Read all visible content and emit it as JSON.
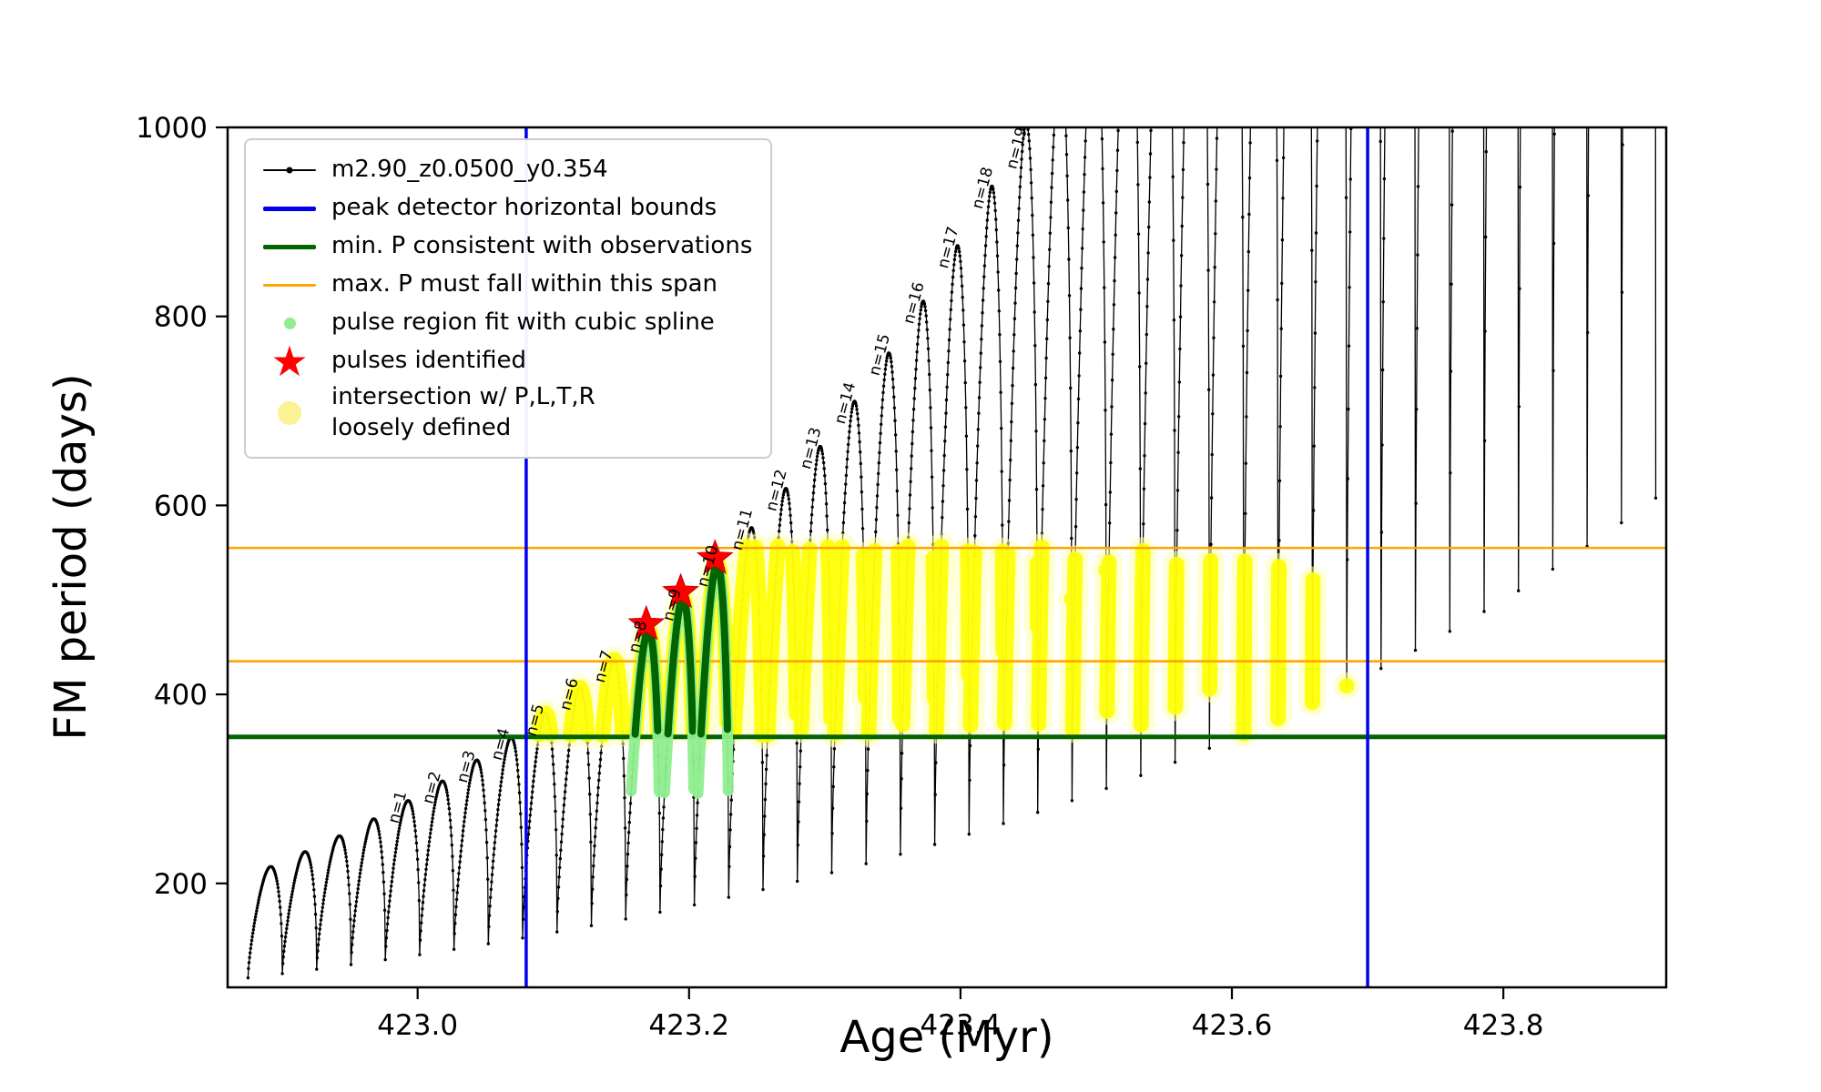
{
  "figure": {
    "background": "#ffffff",
    "xlabel": "Age (Myr)",
    "ylabel": "FM period (days)"
  },
  "chart_data": {
    "type": "line",
    "title": "",
    "xlabel": "Age (Myr)",
    "ylabel": "FM period (days)",
    "xlim": [
      422.86,
      423.92
    ],
    "ylim": [
      90,
      1000
    ],
    "xticks": [
      423.0,
      423.2,
      423.4,
      423.6,
      423.8
    ],
    "xtick_labels": [
      "423.0",
      "423.2",
      "423.4",
      "423.6",
      "423.8"
    ],
    "yticks": [
      200,
      400,
      600,
      800,
      1000
    ],
    "ytick_labels": [
      "200",
      "400",
      "600",
      "800",
      "1000"
    ],
    "grid": false,
    "legend_position": "upper left",
    "series": [
      {
        "name": "m2.90_z0.0500_y0.354",
        "type": "thermal_pulse_period_track",
        "color": "#000000",
        "marker": "point",
        "pulse_model": {
          "x_start": 422.875,
          "spacing": 0.0253,
          "count": 41,
          "trough_base": 100,
          "trough_growth": 1.045,
          "peak_base": 217.8,
          "peak_growth": 1.072,
          "peak_phase_exponent": 1.7,
          "shape_exponent": 0.42
        }
      }
    ],
    "pulse_peak_labels": {
      "texts": [
        "n=1",
        "n=2",
        "n=3",
        "n=4",
        "n=5",
        "n=6",
        "n=7",
        "n=8",
        "n=9",
        "n=10",
        "n=11",
        "n=12",
        "n=13",
        "n=14",
        "n=15",
        "n=16",
        "n=17",
        "n=18",
        "n=19"
      ],
      "first_pulse_index": 4,
      "rotation_deg": -75
    },
    "peak_detector_bounds": {
      "x": [
        423.08,
        423.7
      ],
      "color": "#0000ee",
      "label": "peak detector horizontal bounds"
    },
    "min_period_line": {
      "y": 355,
      "color": "#006400",
      "label": "min. P consistent with observations"
    },
    "max_period_span": {
      "y": [
        435,
        555
      ],
      "color": "#ffa500",
      "label": "max. P must fall within this span"
    },
    "intersection_region": {
      "x_range": [
        423.09,
        423.685
      ],
      "y_range": [
        356,
        557
      ],
      "color": "#ffff00",
      "fringe_color": "#ffffb3",
      "label": "intersection w/ P,L,T,R loosely defined"
    },
    "spline_fit_pulses": {
      "pulse_indices": [
        11,
        12,
        13
      ],
      "dot_color": "#90ee90",
      "bar_color": "#006400",
      "y_min_dots": 295,
      "y_min_bar": 356,
      "label": "pulse region fit with cubic spline"
    },
    "pulses_identified": {
      "marker": "star",
      "color": "#ff0000",
      "points": [
        [
          423.1685,
          474
        ],
        [
          423.1938,
          508
        ],
        [
          423.2191,
          544
        ]
      ],
      "label": "pulses identified"
    }
  },
  "legend": {
    "items": [
      {
        "label": "m2.90_z0.0500_y0.354",
        "marker": "line-dot",
        "color": "#000000",
        "weight": 2
      },
      {
        "label": "peak detector horizontal bounds",
        "marker": "line",
        "color": "#0000ee",
        "weight": 5
      },
      {
        "label": "min. P consistent with observations",
        "marker": "line",
        "color": "#006400",
        "weight": 5
      },
      {
        "label": "max. P must fall within this span",
        "marker": "line",
        "color": "#ffa500",
        "weight": 3
      },
      {
        "label": "pulse region fit with cubic spline",
        "marker": "dot",
        "color": "#90ee90",
        "size": 13
      },
      {
        "label": "pulses identified",
        "marker": "star",
        "color": "#ff0000",
        "size": 46
      },
      {
        "label": "intersection w/ P,L,T,R\nloosely defined",
        "marker": "dot",
        "color": "#fdf293",
        "size": 26
      }
    ]
  }
}
